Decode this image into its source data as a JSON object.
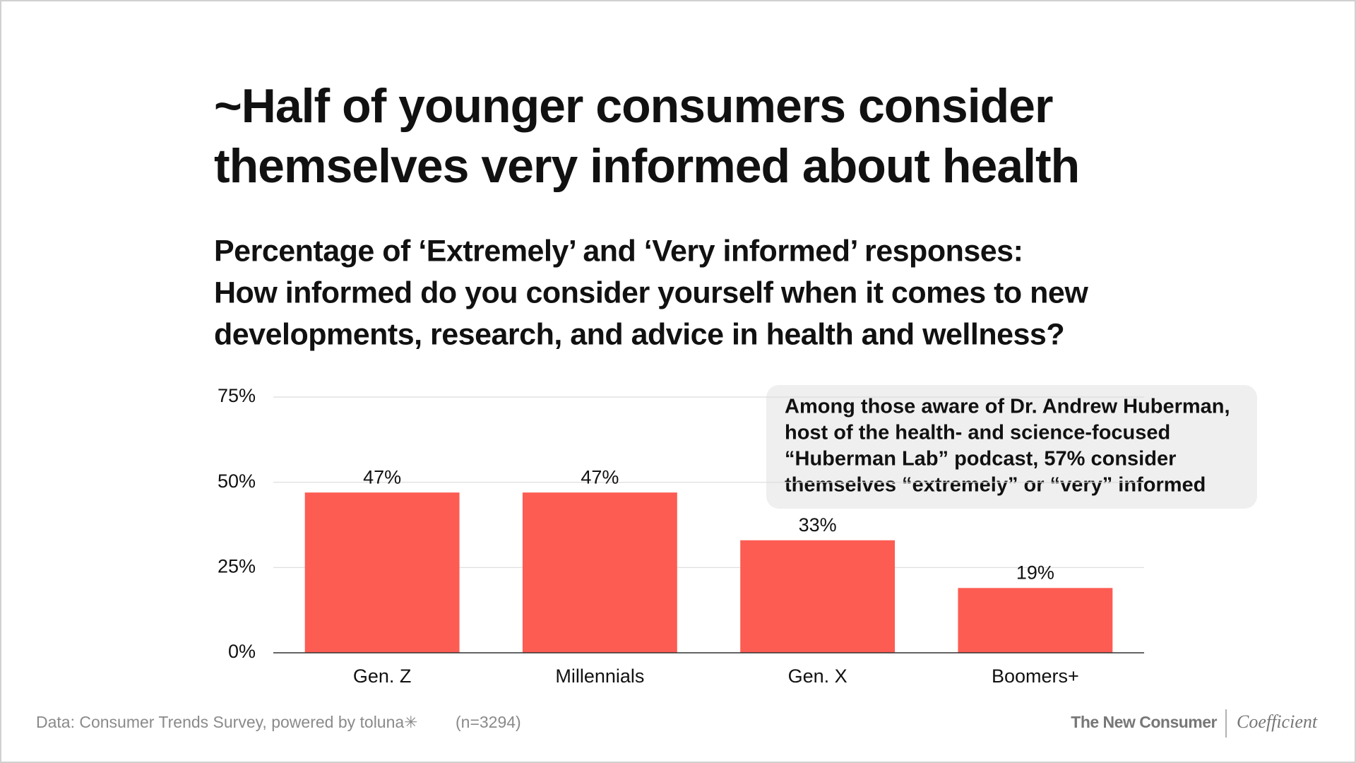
{
  "chart_data": {
    "type": "bar",
    "title": [
      "~Half of younger consumers consider",
      "themselves very informed about health"
    ],
    "subtitle": [
      "Percentage of ‘Extremely’ and ‘Very informed’ responses:",
      "How informed do you consider yourself when it comes to new",
      "developments, research, and advice in health and wellness?"
    ],
    "categories": [
      "Gen. Z",
      "Millennials",
      "Gen. X",
      "Boomers+"
    ],
    "values": [
      47,
      47,
      33,
      19
    ],
    "value_labels": [
      "47%",
      "47%",
      "33%",
      "19%"
    ],
    "color": "#fd5c52",
    "ylim": [
      0,
      75
    ],
    "yticks": [
      {
        "value": 0,
        "label": "0%"
      },
      {
        "value": 25,
        "label": "25%"
      },
      {
        "value": 50,
        "label": "50%"
      },
      {
        "value": 75,
        "label": "75%"
      }
    ],
    "grid": true,
    "annotation": [
      "Among those aware of Dr. Andrew Huberman,",
      "host of the health- and science-focused",
      "“Huberman Lab” podcast, 57% consider",
      "themselves “extremely” or “very” informed"
    ],
    "source": "Data: Consumer Trends Survey, powered by toluna✳",
    "sample": "(n=3294)",
    "brands": [
      "The New Consumer",
      "Coefficient"
    ]
  }
}
